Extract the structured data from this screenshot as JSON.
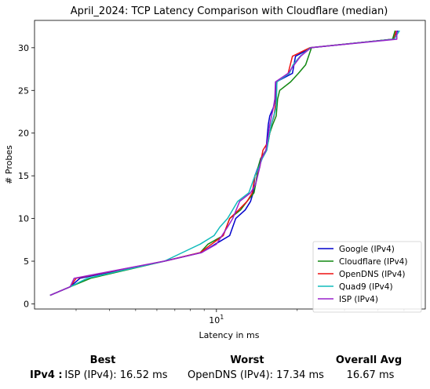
{
  "chart_data": {
    "type": "line",
    "title": "April_2024: TCP Latency Comparison with Cloudflare (median)",
    "xlabel": "Latency in ms",
    "ylabel": "# Probes",
    "xscale": "log",
    "xlim": [
      2.1,
      60
    ],
    "ylim": [
      -0.6,
      33.2
    ],
    "xticks": [
      {
        "value": 10,
        "label": "10^1"
      }
    ],
    "yticks": [
      0,
      5,
      10,
      15,
      20,
      25,
      30
    ],
    "grid": false,
    "legend_position": "lower-right",
    "series": [
      {
        "name": "Google (IPv4)",
        "color": "#0000cc",
        "points": [
          [
            2.4,
            1
          ],
          [
            2.85,
            2
          ],
          [
            3.1,
            3
          ],
          [
            6.4,
            5
          ],
          [
            8.8,
            6
          ],
          [
            9.9,
            7
          ],
          [
            11.2,
            8
          ],
          [
            11.8,
            10
          ],
          [
            12.8,
            11
          ],
          [
            13.4,
            12
          ],
          [
            13.7,
            13
          ],
          [
            13.9,
            15
          ],
          [
            14.3,
            16
          ],
          [
            14.6,
            17
          ],
          [
            15.3,
            18
          ],
          [
            15.6,
            21
          ],
          [
            15.8,
            22
          ],
          [
            16.3,
            23
          ],
          [
            16.6,
            24
          ],
          [
            16.7,
            26
          ],
          [
            19.2,
            27
          ],
          [
            19.7,
            29
          ],
          [
            22.6,
            30
          ],
          [
            45.3,
            31
          ],
          [
            47.5,
            32
          ]
        ]
      },
      {
        "name": "Cloudflare (IPv4)",
        "color": "#118811",
        "points": [
          [
            2.4,
            1
          ],
          [
            2.85,
            2
          ],
          [
            3.4,
            3
          ],
          [
            6.4,
            5
          ],
          [
            8.7,
            6
          ],
          [
            9.3,
            7
          ],
          [
            10.6,
            8
          ],
          [
            11.2,
            10
          ],
          [
            12.3,
            11
          ],
          [
            13.0,
            12
          ],
          [
            13.8,
            13
          ],
          [
            14.0,
            14
          ],
          [
            14.3,
            16
          ],
          [
            14.6,
            17
          ],
          [
            15.3,
            18
          ],
          [
            15.8,
            20
          ],
          [
            16.2,
            21
          ],
          [
            16.7,
            22
          ],
          [
            16.9,
            24
          ],
          [
            17.2,
            25
          ],
          [
            18.9,
            26
          ],
          [
            20.2,
            27
          ],
          [
            21.5,
            28
          ],
          [
            22.6,
            30
          ],
          [
            45.3,
            31
          ],
          [
            46.3,
            32
          ]
        ]
      },
      {
        "name": "OpenDNS (IPv4)",
        "color": "#ee1111",
        "points": [
          [
            2.4,
            1
          ],
          [
            2.85,
            2
          ],
          [
            3.0,
            3
          ],
          [
            6.4,
            5
          ],
          [
            8.7,
            6
          ],
          [
            10.6,
            8
          ],
          [
            11.2,
            10
          ],
          [
            12.1,
            11
          ],
          [
            13.0,
            12
          ],
          [
            13.6,
            13
          ],
          [
            13.9,
            15
          ],
          [
            14.5,
            16
          ],
          [
            14.9,
            18
          ],
          [
            15.6,
            19
          ],
          [
            16.0,
            21
          ],
          [
            16.4,
            22
          ],
          [
            16.7,
            24
          ],
          [
            16.8,
            26
          ],
          [
            18.5,
            27
          ],
          [
            19.2,
            29
          ],
          [
            22.3,
            30
          ],
          [
            45.8,
            31
          ],
          [
            46.8,
            32
          ]
        ]
      },
      {
        "name": "Quad9 (IPv4)",
        "color": "#11bbbb",
        "points": [
          [
            2.4,
            1
          ],
          [
            2.85,
            2
          ],
          [
            3.3,
            3
          ],
          [
            6.4,
            5
          ],
          [
            8.7,
            7
          ],
          [
            9.8,
            8
          ],
          [
            10.3,
            9
          ],
          [
            11.0,
            10
          ],
          [
            12.0,
            12
          ],
          [
            13.2,
            13
          ],
          [
            13.9,
            15
          ],
          [
            14.4,
            16
          ],
          [
            14.8,
            17
          ],
          [
            15.4,
            18
          ],
          [
            16.0,
            21
          ],
          [
            16.7,
            23
          ],
          [
            16.8,
            26
          ],
          [
            18.7,
            27
          ],
          [
            19.3,
            28
          ],
          [
            20.5,
            29
          ],
          [
            22.4,
            30
          ],
          [
            45.9,
            31
          ],
          [
            48.1,
            32
          ]
        ]
      },
      {
        "name": "ISP (IPv4)",
        "color": "#9922cc",
        "points": [
          [
            2.4,
            1
          ],
          [
            2.85,
            2
          ],
          [
            2.95,
            3
          ],
          [
            6.4,
            5
          ],
          [
            8.8,
            6
          ],
          [
            10.0,
            7
          ],
          [
            11.0,
            9
          ],
          [
            11.5,
            10
          ],
          [
            12.2,
            12
          ],
          [
            13.4,
            13
          ],
          [
            14.0,
            14
          ],
          [
            14.5,
            16
          ],
          [
            14.7,
            17
          ],
          [
            15.3,
            18
          ],
          [
            15.8,
            21
          ],
          [
            16.3,
            23
          ],
          [
            16.5,
            24
          ],
          [
            16.6,
            26
          ],
          [
            18.5,
            27
          ],
          [
            19.5,
            28
          ],
          [
            20.6,
            29
          ],
          [
            22.5,
            30
          ],
          [
            47.0,
            31
          ],
          [
            47.0,
            32
          ]
        ]
      }
    ]
  },
  "summary": {
    "row_label": "IPv4 :",
    "best_header": "Best",
    "worst_header": "Worst",
    "avg_header": "Overall Avg",
    "best_value": "ISP (IPv4): 16.52 ms",
    "worst_value": "OpenDNS (IPv4): 17.34 ms",
    "avg_value": "16.67 ms"
  }
}
